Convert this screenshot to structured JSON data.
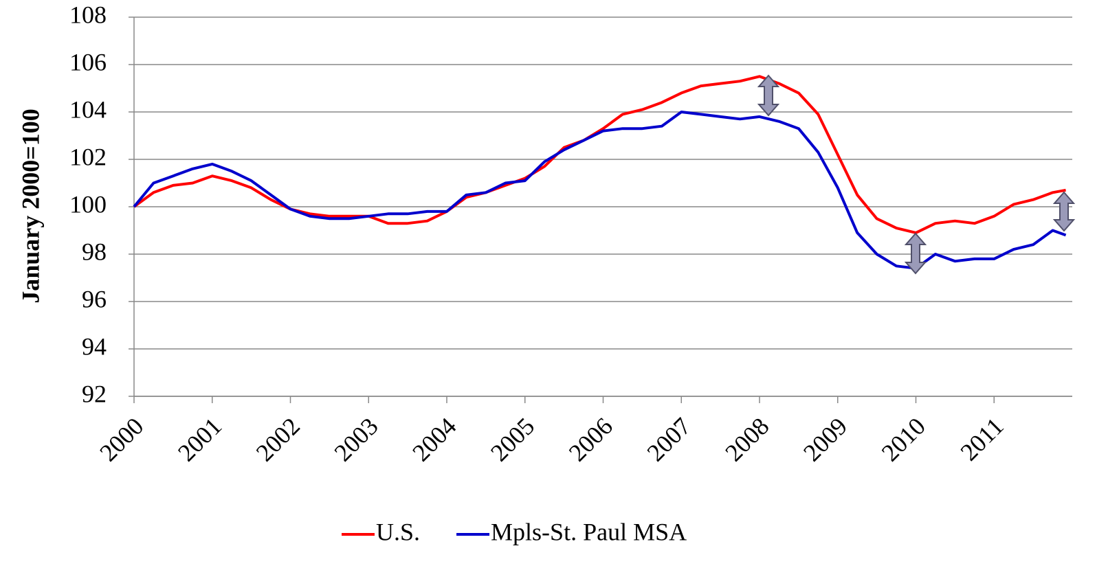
{
  "chart_data": {
    "type": "line",
    "y_label": "January 2000=100",
    "x": [
      2000,
      2000.25,
      2000.5,
      2000.75,
      2001,
      2001.25,
      2001.5,
      2001.75,
      2002,
      2002.25,
      2002.5,
      2002.75,
      2003,
      2003.25,
      2003.5,
      2003.75,
      2004,
      2004.25,
      2004.5,
      2004.75,
      2005,
      2005.25,
      2005.5,
      2005.75,
      2006,
      2006.25,
      2006.5,
      2006.75,
      2007,
      2007.25,
      2007.5,
      2007.75,
      2008,
      2008.25,
      2008.5,
      2008.75,
      2009,
      2009.25,
      2009.5,
      2009.75,
      2010,
      2010.25,
      2010.5,
      2010.75,
      2011,
      2011.25,
      2011.5,
      2011.75,
      2011.917
    ],
    "series": [
      {
        "name": "U.S.",
        "color": "#ff0000",
        "values": [
          100.0,
          100.6,
          100.9,
          101.0,
          101.3,
          101.1,
          100.8,
          100.3,
          99.9,
          99.7,
          99.6,
          99.6,
          99.6,
          99.3,
          99.3,
          99.4,
          99.8,
          100.4,
          100.6,
          100.9,
          101.2,
          101.7,
          102.5,
          102.8,
          103.3,
          103.9,
          104.1,
          104.4,
          104.8,
          105.1,
          105.2,
          105.3,
          105.5,
          105.2,
          104.8,
          103.9,
          102.2,
          100.5,
          99.5,
          99.1,
          98.9,
          99.3,
          99.4,
          99.3,
          99.6,
          100.1,
          100.3,
          100.6,
          100.7
        ]
      },
      {
        "name": "Mpls-St. Paul MSA",
        "color": "#0000cc",
        "values": [
          100.0,
          101.0,
          101.3,
          101.6,
          101.8,
          101.5,
          101.1,
          100.5,
          99.9,
          99.6,
          99.5,
          99.5,
          99.6,
          99.7,
          99.7,
          99.8,
          99.8,
          100.5,
          100.6,
          101.0,
          101.1,
          101.9,
          102.4,
          102.8,
          103.2,
          103.3,
          103.3,
          103.4,
          104.0,
          103.9,
          103.8,
          103.7,
          103.8,
          103.6,
          103.3,
          102.3,
          100.8,
          98.9,
          98.0,
          97.5,
          97.4,
          98.0,
          97.7,
          97.8,
          97.8,
          98.2,
          98.4,
          99.0,
          98.8
        ]
      }
    ],
    "xlim": [
      2000,
      2012
    ],
    "xticks": [
      2000,
      2001,
      2002,
      2003,
      2004,
      2005,
      2006,
      2007,
      2008,
      2009,
      2010,
      2011
    ],
    "ylim": [
      92,
      108
    ],
    "yticks": [
      92,
      94,
      96,
      98,
      100,
      102,
      104,
      106,
      108
    ],
    "grid": true,
    "legend": "bottom"
  }
}
